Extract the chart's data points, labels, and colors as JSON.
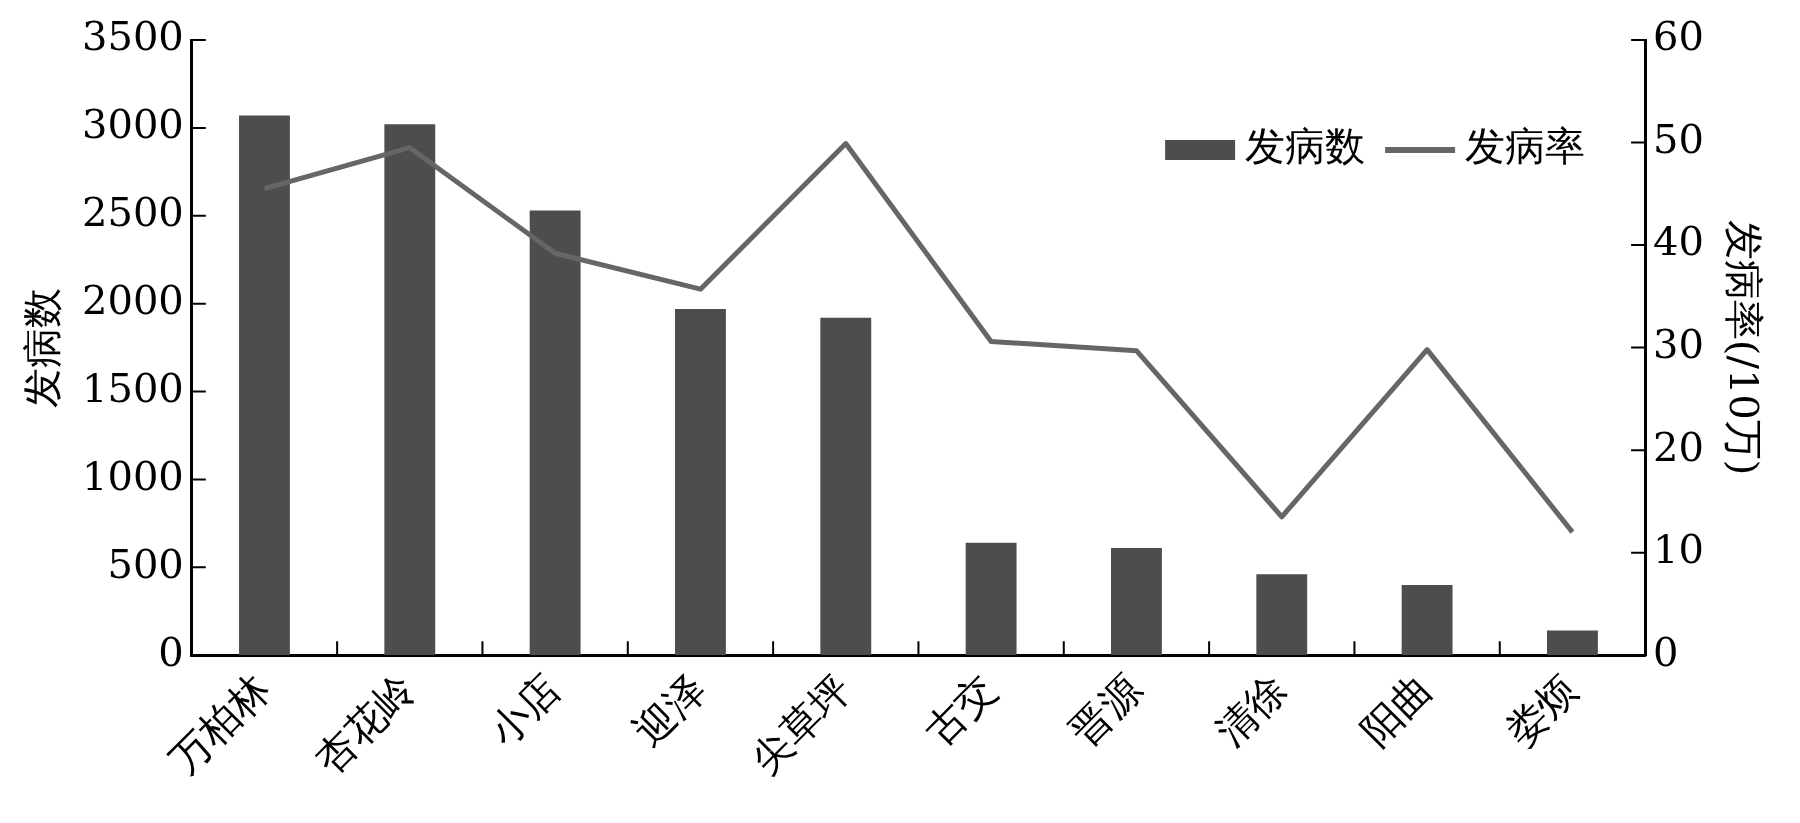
{
  "chart_data": {
    "type": "bar",
    "categories": [
      "万柏林",
      "杏花岭",
      "小店",
      "迎泽",
      "尖草坪",
      "古交",
      "晋源",
      "清徐",
      "阳曲",
      "娄烦"
    ],
    "series": [
      {
        "name": "发病数",
        "color": "#4d4d4d",
        "values": [
          3070,
          3020,
          2530,
          1970,
          1920,
          640,
          610,
          460,
          400,
          140
        ]
      },
      {
        "name": "发病率",
        "type": "line",
        "axis": "y2",
        "color": "#666666",
        "values": [
          45.5,
          49.5,
          39.2,
          35.7,
          49.9,
          30.6,
          29.7,
          13.5,
          29.8,
          12.0
        ]
      }
    ],
    "ylabel": "发病数",
    "y2label": "发病率(/10万)",
    "ylim": [
      0,
      3500
    ],
    "yticks": [
      0,
      500,
      1000,
      1500,
      2000,
      2500,
      3000,
      3500
    ],
    "y2lim": [
      0,
      60
    ],
    "y2ticks": [
      0,
      10,
      20,
      30,
      40,
      50,
      60
    ],
    "grid": false,
    "legend": "top right",
    "marker": "none"
  }
}
